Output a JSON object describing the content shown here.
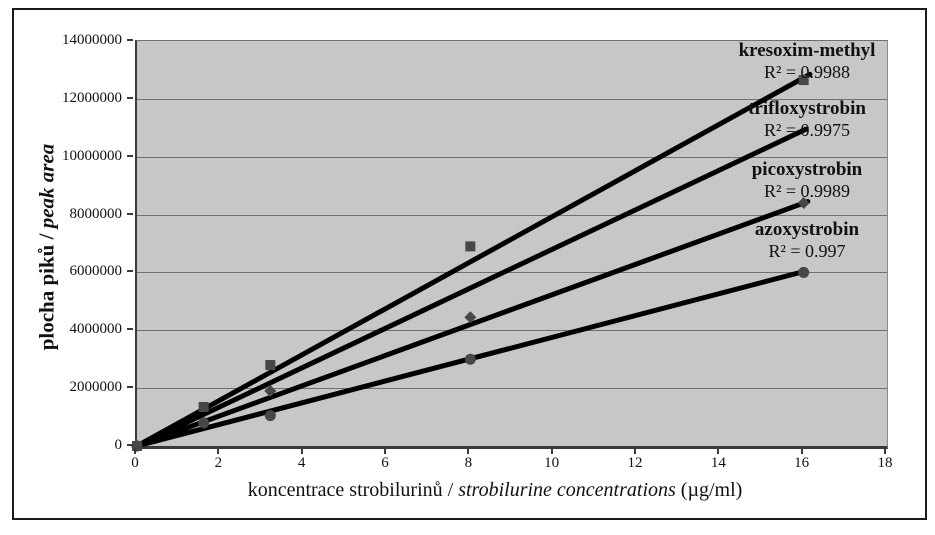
{
  "figure": {
    "background": "#ffffff",
    "border_color": "#1a1a1a"
  },
  "chart_data": {
    "type": "scatter",
    "title": "",
    "xlabel_parts": {
      "normal1": "koncentrace strobilurinů / ",
      "italic": "strobilurine concentrations",
      "normal2": " (µg/ml)"
    },
    "ylabel_parts": {
      "normal": "plocha piků / ",
      "italic": "peak area"
    },
    "xlim": [
      0,
      18
    ],
    "ylim": [
      0,
      14000000
    ],
    "xticks": [
      "0",
      "2",
      "4",
      "6",
      "8",
      "10",
      "12",
      "14",
      "16",
      "18"
    ],
    "yticks": [
      "0",
      "2000000",
      "4000000",
      "6000000",
      "8000000",
      "10000000",
      "12000000",
      "14000000"
    ],
    "grid": "horizontal",
    "legend_position": "labels-right-inside-plot",
    "plot_bg": "#c7c7c7",
    "grid_color": "#6f6f6f",
    "axis_color": "#3a3a3a",
    "line_color": "#000000",
    "marker_color": "#474747",
    "series": [
      {
        "name": "kresoxim-methyl",
        "r2_label": "R² = 0.9988",
        "marker": "square",
        "points": [
          [
            0,
            0
          ],
          [
            1.6,
            1350000
          ],
          [
            3.2,
            2800000
          ],
          [
            8,
            6900000
          ],
          [
            16,
            12650000
          ]
        ],
        "trendline_end": {
          "x": 16.15,
          "y": 12850000
        }
      },
      {
        "name": "trifloxystrobin",
        "r2_label": "R² = 0.9975",
        "marker": "none",
        "points": [
          [
            0,
            0
          ],
          [
            1.6,
            1100000
          ],
          [
            3.2,
            2200000
          ],
          [
            8,
            5450000
          ],
          [
            16,
            10850000
          ]
        ],
        "trendline_end": {
          "x": 16.05,
          "y": 10950000
        }
      },
      {
        "name": "picoxystrobin",
        "r2_label": "R² = 0.9989",
        "marker": "diamond",
        "points": [
          [
            0,
            0
          ],
          [
            3.2,
            1900000
          ],
          [
            8,
            4450000
          ],
          [
            16,
            8400000
          ]
        ],
        "trendline_end": {
          "x": 16.1,
          "y": 8450000
        }
      },
      {
        "name": "azoxystrobin",
        "r2_label": "R² = 0.997",
        "marker": "circle",
        "points": [
          [
            0,
            0
          ],
          [
            1.6,
            800000
          ],
          [
            3.2,
            1050000
          ],
          [
            8,
            3000000
          ],
          [
            16,
            6000000
          ]
        ],
        "trendline_end": {
          "x": 16.05,
          "y": 6050000
        }
      }
    ]
  }
}
